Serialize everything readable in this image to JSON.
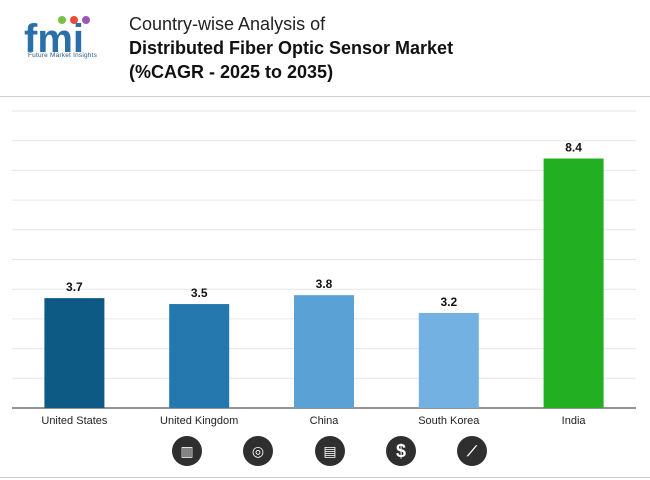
{
  "header": {
    "title_line1": "Country-wise Analysis of",
    "title_line2": "Distributed Fiber Optic Sensor Market",
    "title_line3": "(%CAGR - 2025 to 2035)",
    "logo_text": "fmi",
    "logo_subtext": "Future Market Insights"
  },
  "chart_data": {
    "type": "bar",
    "title": "Country-wise Analysis of Distributed Fiber Optic Sensor Market (%CAGR - 2025 to 2035)",
    "categories": [
      "United States",
      "United Kingdom",
      "China",
      "South Korea",
      "India"
    ],
    "values": [
      3.7,
      3.5,
      3.8,
      3.2,
      8.4
    ],
    "value_labels": [
      "3.7",
      "3.5",
      "3.8",
      "3.2",
      "8.4"
    ],
    "colors": [
      "#0d5a85",
      "#2478ae",
      "#5aa2d6",
      "#72b1e2",
      "#22b022"
    ],
    "xlabel": "",
    "ylabel": "",
    "ylim": [
      0,
      10
    ],
    "grid": true
  },
  "footer_icons": [
    "bar-chart-icon",
    "globe-trend-icon",
    "report-icon",
    "dollar-icon",
    "line-trend-icon"
  ],
  "footer_symbols": [
    "▥",
    "◎",
    "▤",
    "$",
    "⟋"
  ]
}
